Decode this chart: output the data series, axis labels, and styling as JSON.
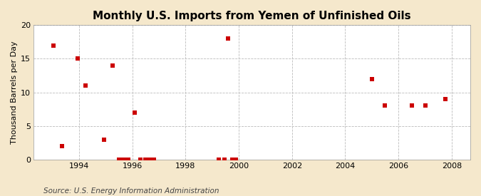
{
  "title": "Monthly U.S. Imports from Yemen of Unfinished Oils",
  "ylabel": "Thousand Barrels per Day",
  "source": "Source: U.S. Energy Information Administration",
  "background_color": "#f5e8cc",
  "plot_background": "#ffffff",
  "marker_color": "#cc0000",
  "marker_size": 18,
  "xlim": [
    1992.3,
    2008.7
  ],
  "ylim": [
    0,
    20
  ],
  "xticks": [
    1994,
    1996,
    1998,
    2000,
    2002,
    2004,
    2006,
    2008
  ],
  "yticks": [
    0,
    5,
    10,
    15,
    20
  ],
  "data_x": [
    1993.05,
    1993.35,
    1993.95,
    1994.25,
    1994.95,
    1995.25,
    1995.5,
    1995.65,
    1995.75,
    1995.85,
    1996.1,
    1996.3,
    1996.5,
    1996.65,
    1996.8,
    1999.25,
    1999.45,
    1999.6,
    1999.75,
    1999.9,
    2005.0,
    2005.5,
    2006.5,
    2007.0,
    2007.75
  ],
  "data_y": [
    17,
    2,
    15,
    11,
    3,
    14,
    0,
    0,
    0,
    0,
    7,
    0,
    0,
    0,
    0,
    0,
    0,
    18,
    0,
    0,
    12,
    8,
    8,
    8,
    9
  ],
  "grid_color": "#bbbbbb",
  "grid_linestyle": "--",
  "grid_linewidth": 0.6,
  "title_fontsize": 11,
  "ylabel_fontsize": 8,
  "tick_fontsize": 8,
  "source_fontsize": 7.5
}
